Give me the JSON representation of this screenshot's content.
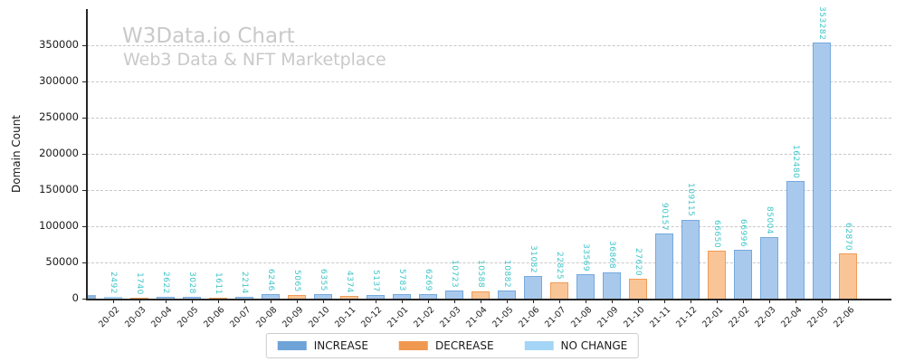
{
  "chart_data": {
    "type": "bar",
    "title": "W3Data.io Chart",
    "subtitle": "Web3 Data & NFT Marketplace",
    "xlabel": "",
    "ylabel": "Domain Count",
    "ylim": [
      0,
      400000
    ],
    "y_ticks": [
      0,
      50000,
      100000,
      150000,
      200000,
      250000,
      300000,
      350000
    ],
    "grid": "horizontal dashed",
    "legend_position": "bottom center",
    "clipped_partial_bar_at_left_axis": true,
    "series_legend": [
      {
        "name": "INCREASE",
        "color": "#6ea3d8"
      },
      {
        "name": "DECREASE",
        "color": "#f09850"
      },
      {
        "name": "NO CHANGE",
        "color": "#a5d5f6"
      }
    ],
    "points": [
      {
        "label": "20-02",
        "value": 2492,
        "type": "no_change"
      },
      {
        "label": "20-03",
        "value": 1740,
        "type": "decrease"
      },
      {
        "label": "20-04",
        "value": 2622,
        "type": "increase"
      },
      {
        "label": "20-05",
        "value": 3028,
        "type": "increase"
      },
      {
        "label": "20-06",
        "value": 1611,
        "type": "decrease"
      },
      {
        "label": "20-07",
        "value": 2214,
        "type": "increase"
      },
      {
        "label": "20-08",
        "value": 6246,
        "type": "increase"
      },
      {
        "label": "20-09",
        "value": 5065,
        "type": "decrease"
      },
      {
        "label": "20-10",
        "value": 6355,
        "type": "increase"
      },
      {
        "label": "20-11",
        "value": 4374,
        "type": "decrease"
      },
      {
        "label": "20-12",
        "value": 5137,
        "type": "increase"
      },
      {
        "label": "21-01",
        "value": 5783,
        "type": "increase"
      },
      {
        "label": "21-02",
        "value": 6269,
        "type": "increase"
      },
      {
        "label": "21-03",
        "value": 10723,
        "type": "increase"
      },
      {
        "label": "21-04",
        "value": 10588,
        "type": "decrease"
      },
      {
        "label": "21-05",
        "value": 10882,
        "type": "increase"
      },
      {
        "label": "21-06",
        "value": 31082,
        "type": "increase"
      },
      {
        "label": "21-07",
        "value": 22825,
        "type": "decrease"
      },
      {
        "label": "21-08",
        "value": 33569,
        "type": "increase"
      },
      {
        "label": "21-09",
        "value": 36868,
        "type": "increase"
      },
      {
        "label": "21-10",
        "value": 27620,
        "type": "decrease"
      },
      {
        "label": "21-11",
        "value": 90157,
        "type": "increase"
      },
      {
        "label": "21-12",
        "value": 109115,
        "type": "increase"
      },
      {
        "label": "22-01",
        "value": 66650,
        "type": "decrease"
      },
      {
        "label": "22-02",
        "value": 66996,
        "type": "increase"
      },
      {
        "label": "22-03",
        "value": 85004,
        "type": "increase"
      },
      {
        "label": "22-04",
        "value": 162480,
        "type": "increase"
      },
      {
        "label": "22-05",
        "value": 353282,
        "type": "increase"
      },
      {
        "label": "22-06",
        "value": 62870,
        "type": "decrease"
      }
    ],
    "colors": {
      "increase_fill": "#a9c9ec",
      "increase_edge": "#74a9de",
      "decrease_fill": "#f9c597",
      "decrease_edge": "#f09b55",
      "no_change_fill": "#b4dcf8",
      "no_change_edge": "#9bcdf0",
      "value_label": "#3fc5c8",
      "title_gray": "#c9c9c9",
      "grid_gray": "#c8c8c8",
      "axis_dark": "#262626"
    }
  }
}
